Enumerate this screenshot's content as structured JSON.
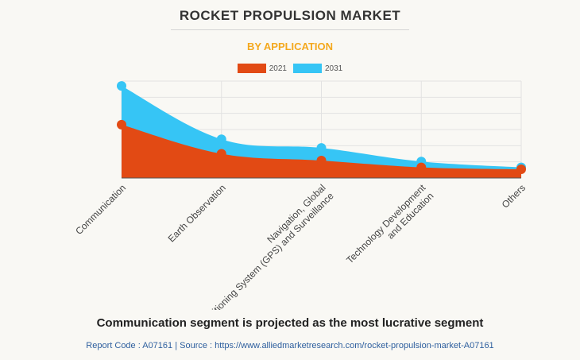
{
  "header": {
    "title": "ROCKET PROPULSION MARKET",
    "subtitle": "BY APPLICATION"
  },
  "colors": {
    "series_2021": "#e24a14",
    "series_2031": "#36c5f5",
    "subtitle": "#f4a81d",
    "grid": "#e2e2e2",
    "axis": "#555555"
  },
  "chart_data": {
    "type": "area",
    "title": "BY APPLICATION",
    "categories": [
      "Communication",
      "Earth Observation",
      "Navigation, Global Positioning System (GPS) and Surveillance",
      "Technology Development and Education",
      "Others"
    ],
    "category_label_lines": [
      [
        "Communication"
      ],
      [
        "Earth Observation"
      ],
      [
        "Navigation, Global",
        "Positioning System (GPS) and Surveillance"
      ],
      [
        "Technology Development",
        "and Education"
      ],
      [
        "Others"
      ]
    ],
    "series": [
      {
        "name": "2021",
        "values": [
          55,
          25,
          18,
          11,
          9
        ]
      },
      {
        "name": "2031",
        "values": [
          95,
          40,
          31,
          17,
          11
        ]
      }
    ],
    "ylim": [
      0,
      100
    ],
    "y_tick_count": 7,
    "y_ticks_visible": false,
    "grid": true,
    "legend_position": "top-center",
    "xlabel": "",
    "ylabel": ""
  },
  "footer": {
    "caption": "Communication segment is projected as the most lucrative segment",
    "source": "Report Code : A07161  |  Source : https://www.alliedmarketresearch.com/rocket-propulsion-market-A07161"
  }
}
